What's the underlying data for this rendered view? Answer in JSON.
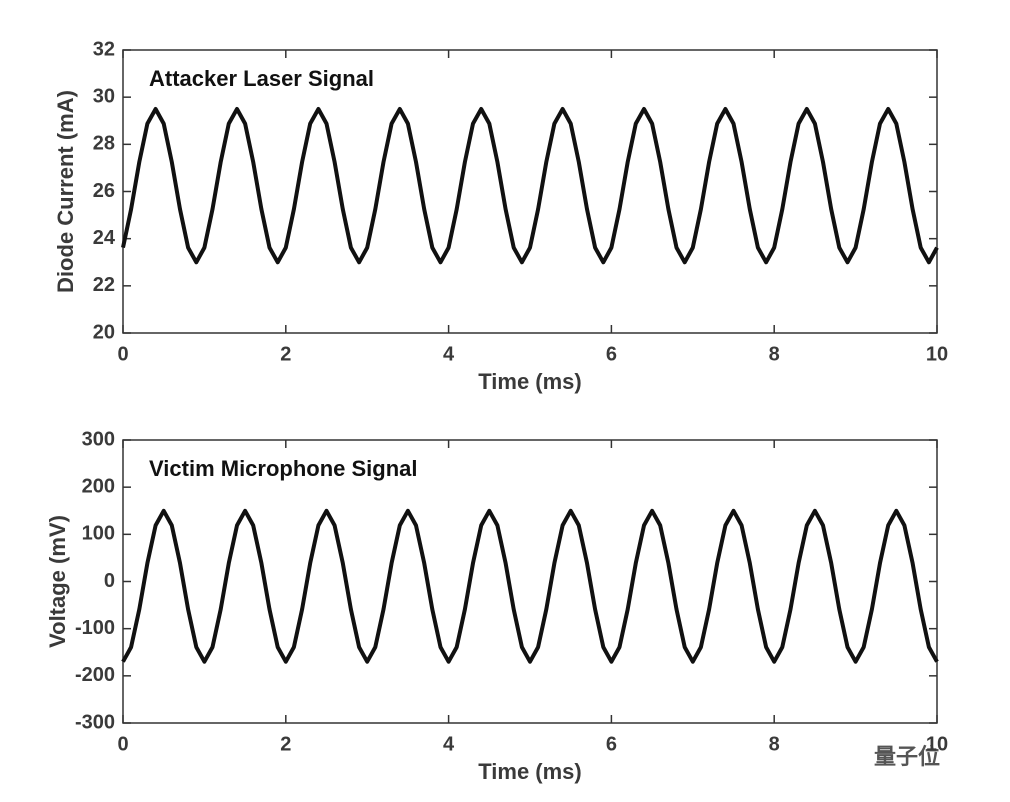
{
  "chart_data": [
    {
      "type": "line",
      "title": "Attacker Laser Signal",
      "xlabel": "Time (ms)",
      "ylabel": "Diode Current (mA)",
      "color": "#111111",
      "xlim": [
        0,
        10
      ],
      "xticks": [
        0,
        2,
        4,
        6,
        8,
        10
      ],
      "ylim": [
        20,
        32
      ],
      "yticks": [
        20,
        22,
        24,
        26,
        28,
        30,
        32
      ],
      "x": [
        0,
        0.1,
        0.2,
        0.3,
        0.4,
        0.5,
        0.6,
        0.7,
        0.8,
        0.9,
        1,
        1.1,
        1.2,
        1.3,
        1.4,
        1.5,
        1.6,
        1.7,
        1.8,
        1.9,
        2,
        2.1,
        2.2,
        2.3,
        2.4,
        2.5,
        2.6,
        2.7,
        2.8,
        2.9,
        3,
        3.1,
        3.2,
        3.3,
        3.4,
        3.5,
        3.6,
        3.7,
        3.8,
        3.9,
        4,
        4.1,
        4.2,
        4.3,
        4.4,
        4.5,
        4.6,
        4.7,
        4.8,
        4.9,
        5,
        5.1,
        5.2,
        5.3,
        5.4,
        5.5,
        5.6,
        5.7,
        5.8,
        5.9,
        6,
        6.1,
        6.2,
        6.3,
        6.4,
        6.5,
        6.6,
        6.7,
        6.8,
        6.9,
        7,
        7.1,
        7.2,
        7.3,
        7.4,
        7.5,
        7.6,
        7.7,
        7.8,
        7.9,
        8,
        8.1,
        8.2,
        8.3,
        8.4,
        8.5,
        8.6,
        8.7,
        8.8,
        8.9,
        9,
        9.1,
        9.2,
        9.3,
        9.4,
        9.5,
        9.6,
        9.7,
        9.8,
        9.9,
        10
      ],
      "values": [
        23.62,
        25.25,
        27.25,
        28.88,
        29.5,
        28.88,
        27.25,
        25.25,
        23.62,
        23.0,
        23.62,
        25.25,
        27.25,
        28.88,
        29.5,
        28.88,
        27.25,
        25.25,
        23.62,
        23.0,
        23.62,
        25.25,
        27.25,
        28.88,
        29.5,
        28.88,
        27.25,
        25.25,
        23.62,
        23.0,
        23.62,
        25.25,
        27.25,
        28.88,
        29.5,
        28.88,
        27.25,
        25.25,
        23.62,
        23.0,
        23.62,
        25.25,
        27.25,
        28.88,
        29.5,
        28.88,
        27.25,
        25.25,
        23.62,
        23.0,
        23.62,
        25.25,
        27.25,
        28.88,
        29.5,
        28.88,
        27.25,
        25.25,
        23.62,
        23.0,
        23.62,
        25.25,
        27.25,
        28.88,
        29.5,
        28.88,
        27.25,
        25.25,
        23.62,
        23.0,
        23.62,
        25.25,
        27.25,
        28.88,
        29.5,
        28.88,
        27.25,
        25.25,
        23.62,
        23.0,
        23.62,
        25.25,
        27.25,
        28.88,
        29.5,
        28.88,
        27.25,
        25.25,
        23.62,
        23.0,
        23.62,
        25.25,
        27.25,
        28.88,
        29.5,
        28.88,
        27.25,
        25.25,
        23.62,
        23.0,
        23.62
      ]
    },
    {
      "type": "line",
      "title": "Victim Microphone Signal",
      "xlabel": "Time (ms)",
      "ylabel": "Voltage (mV)",
      "color": "#111111",
      "xlim": [
        0,
        10
      ],
      "xticks": [
        0,
        2,
        4,
        6,
        8,
        10
      ],
      "ylim": [
        -300,
        300
      ],
      "yticks": [
        -300,
        -200,
        -100,
        0,
        100,
        200,
        300
      ],
      "x": [
        0,
        0.1,
        0.2,
        0.3,
        0.4,
        0.5,
        0.6,
        0.7,
        0.8,
        0.9,
        1,
        1.1,
        1.2,
        1.3,
        1.4,
        1.5,
        1.6,
        1.7,
        1.8,
        1.9,
        2,
        2.1,
        2.2,
        2.3,
        2.4,
        2.5,
        2.6,
        2.7,
        2.8,
        2.9,
        3,
        3.1,
        3.2,
        3.3,
        3.4,
        3.5,
        3.6,
        3.7,
        3.8,
        3.9,
        4,
        4.1,
        4.2,
        4.3,
        4.4,
        4.5,
        4.6,
        4.7,
        4.8,
        4.9,
        5,
        5.1,
        5.2,
        5.3,
        5.4,
        5.5,
        5.6,
        5.7,
        5.8,
        5.9,
        6,
        6.1,
        6.2,
        6.3,
        6.4,
        6.5,
        6.6,
        6.7,
        6.8,
        6.9,
        7,
        7.1,
        7.2,
        7.3,
        7.4,
        7.5,
        7.6,
        7.7,
        7.8,
        7.9,
        8,
        8.1,
        8.2,
        8.3,
        8.4,
        8.5,
        8.6,
        8.7,
        8.8,
        8.9,
        9,
        9.1,
        9.2,
        9.3,
        9.4,
        9.5,
        9.6,
        9.7,
        9.8,
        9.9,
        10
      ],
      "values": [
        -170,
        -139,
        -59,
        39,
        119,
        150,
        119,
        39,
        -59,
        -139,
        -170,
        -139,
        -59,
        39,
        119,
        150,
        119,
        39,
        -59,
        -139,
        -170,
        -139,
        -59,
        39,
        119,
        150,
        119,
        39,
        -59,
        -139,
        -170,
        -139,
        -59,
        39,
        119,
        150,
        119,
        39,
        -59,
        -139,
        -170,
        -139,
        -59,
        39,
        119,
        150,
        119,
        39,
        -59,
        -139,
        -170,
        -139,
        -59,
        39,
        119,
        150,
        119,
        39,
        -59,
        -139,
        -170,
        -139,
        -59,
        39,
        119,
        150,
        119,
        39,
        -59,
        -139,
        -170,
        -139,
        -59,
        39,
        119,
        150,
        119,
        39,
        -59,
        -139,
        -170,
        -139,
        -59,
        39,
        119,
        150,
        119,
        39,
        -59,
        -139,
        -170,
        -139,
        -59,
        39,
        119,
        150,
        119,
        39,
        -59,
        -139,
        -170
      ]
    }
  ],
  "watermark": "量子位"
}
